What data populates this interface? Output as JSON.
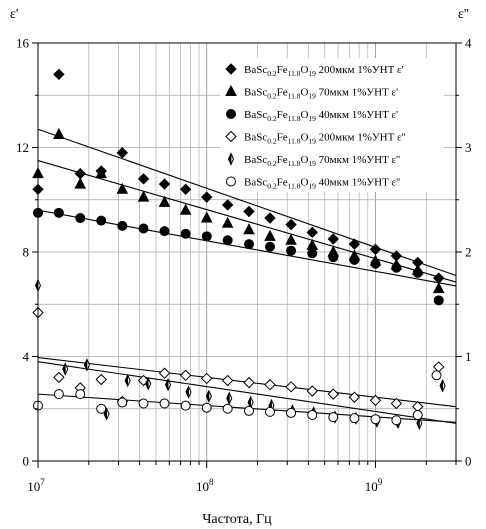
{
  "chart_data": {
    "type": "scatter",
    "title": "",
    "xlabel": "Частота, Гц",
    "ylabel_left": "ε'",
    "ylabel_right": "ε''",
    "x_scale": "log",
    "xlim": [
      10000000,
      3000000000
    ],
    "ylim_left": [
      0,
      16
    ],
    "ylim_right": [
      0,
      4
    ],
    "grid": true,
    "legend_position": "top-right",
    "x_tick_labels": [
      {
        "x": 10000000,
        "base": "10",
        "exp": "7"
      },
      {
        "x": 100000000,
        "base": "10",
        "exp": "8"
      },
      {
        "x": 1000000000,
        "base": "10",
        "exp": "9"
      }
    ],
    "y_left_tick_labels": [
      {
        "y": 0,
        "label": "0"
      },
      {
        "y": 4,
        "label": "4"
      },
      {
        "y": 8,
        "label": "8"
      },
      {
        "y": 12,
        "label": "12"
      },
      {
        "y": 16,
        "label": "16"
      }
    ],
    "y_right_tick_labels": [
      {
        "y": 0,
        "label": "0"
      },
      {
        "y": 1,
        "label": "1"
      },
      {
        "y": 2,
        "label": "2"
      },
      {
        "y": 3,
        "label": "3"
      },
      {
        "y": 4,
        "label": "4"
      }
    ],
    "series": [
      {
        "marker": "diamond-filled",
        "axis": "left",
        "legend": {
          "pre": "BaSc",
          "s1": "0.2",
          "mid": "Fe",
          "s2": "11.8",
          "o": "O",
          "s3": "19",
          "post": " 200мкм  1%УНТ ε'"
        },
        "points": [
          [
            10000000,
            10.4
          ],
          [
            13300000,
            14.8
          ],
          [
            17800000,
            11.0
          ],
          [
            23700000,
            11.1
          ],
          [
            31600000,
            11.8
          ],
          [
            42200000,
            10.8
          ],
          [
            56200000,
            10.6
          ],
          [
            75000000,
            10.4
          ],
          [
            100000000,
            10.1
          ],
          [
            133000000,
            9.8
          ],
          [
            178000000,
            9.55
          ],
          [
            237000000,
            9.3
          ],
          [
            316000000,
            9.05
          ],
          [
            422000000,
            8.75
          ],
          [
            562000000,
            8.5
          ],
          [
            750000000,
            8.3
          ],
          [
            1000000000,
            8.1
          ],
          [
            1330000000,
            7.85
          ],
          [
            1780000000,
            7.6
          ],
          [
            2370000000,
            7.0
          ]
        ],
        "trend": [
          [
            10000000,
            12.7
          ],
          [
            3000000000,
            7.1
          ]
        ]
      },
      {
        "marker": "triangle-filled",
        "axis": "left",
        "legend": {
          "pre": "BaSc",
          "s1": "0.2",
          "mid": "Fe",
          "s2": "11.8",
          "o": "O",
          "s3": "19",
          "post": " 70мкм  1%УНТ ε'"
        },
        "points": [
          [
            10000000,
            11.0
          ],
          [
            13300000,
            12.5
          ],
          [
            17800000,
            10.6
          ],
          [
            23700000,
            11.0
          ],
          [
            31600000,
            10.4
          ],
          [
            42200000,
            10.1
          ],
          [
            56200000,
            9.9
          ],
          [
            75000000,
            9.6
          ],
          [
            100000000,
            9.3
          ],
          [
            133000000,
            9.1
          ],
          [
            178000000,
            8.85
          ],
          [
            237000000,
            8.6
          ],
          [
            316000000,
            8.45
          ],
          [
            422000000,
            8.25
          ],
          [
            562000000,
            8.0
          ],
          [
            750000000,
            7.85
          ],
          [
            1000000000,
            7.65
          ],
          [
            1330000000,
            7.5
          ],
          [
            1780000000,
            7.3
          ],
          [
            2370000000,
            6.6
          ]
        ],
        "trend": [
          [
            10000000,
            11.5
          ],
          [
            3000000000,
            6.85
          ]
        ]
      },
      {
        "marker": "circle-filled",
        "axis": "left",
        "legend": {
          "pre": "BaSc",
          "s1": "0.2",
          "mid": "Fe",
          "s2": "11.8",
          "o": "O",
          "s3": "19",
          "post": " 40мкм  1%УНТ ε'"
        },
        "points": [
          [
            10000000,
            9.5
          ],
          [
            13300000,
            9.5
          ],
          [
            17800000,
            9.3
          ],
          [
            23700000,
            9.2
          ],
          [
            31600000,
            9.0
          ],
          [
            42200000,
            8.9
          ],
          [
            56200000,
            8.8
          ],
          [
            75000000,
            8.7
          ],
          [
            100000000,
            8.6
          ],
          [
            133000000,
            8.45
          ],
          [
            178000000,
            8.3
          ],
          [
            237000000,
            8.2
          ],
          [
            316000000,
            8.05
          ],
          [
            422000000,
            7.95
          ],
          [
            562000000,
            7.8
          ],
          [
            750000000,
            7.7
          ],
          [
            1000000000,
            7.55
          ],
          [
            1330000000,
            7.4
          ],
          [
            1780000000,
            7.2
          ],
          [
            2370000000,
            6.15
          ]
        ],
        "trend": [
          [
            10000000,
            9.6
          ],
          [
            3000000000,
            6.7
          ]
        ]
      },
      {
        "marker": "diamond-open",
        "axis": "right",
        "legend": {
          "pre": "BaSc",
          "s1": "0.2",
          "mid": "Fe",
          "s2": "11.8",
          "o": "O",
          "s3": "19",
          "post": " 200мкм  1%УНТ ε''"
        },
        "points": [
          [
            10000000,
            1.42
          ],
          [
            13300000,
            0.8
          ],
          [
            17800000,
            0.7
          ],
          [
            23700000,
            0.78
          ],
          [
            31600000,
            0.57
          ],
          [
            42200000,
            0.77
          ],
          [
            56200000,
            0.84
          ],
          [
            75000000,
            0.82
          ],
          [
            100000000,
            0.79
          ],
          [
            133000000,
            0.77
          ],
          [
            178000000,
            0.75
          ],
          [
            237000000,
            0.73
          ],
          [
            316000000,
            0.71
          ],
          [
            422000000,
            0.67
          ],
          [
            562000000,
            0.64
          ],
          [
            750000000,
            0.61
          ],
          [
            1000000000,
            0.58
          ],
          [
            1330000000,
            0.55
          ],
          [
            1780000000,
            0.52
          ],
          [
            2370000000,
            0.9
          ]
        ],
        "trend": [
          [
            10000000,
            0.99
          ],
          [
            3000000000,
            0.52
          ]
        ]
      },
      {
        "marker": "half-diamond",
        "axis": "right",
        "legend": {
          "pre": "BaSc",
          "s1": "0.2",
          "mid": "Fe",
          "s2": "11.8",
          "o": "O",
          "s3": "19",
          "post": " 70мкм  1%УНТ ε''"
        },
        "points": [
          [
            10000000,
            1.68
          ],
          [
            14500000,
            0.88
          ],
          [
            19500000,
            0.92
          ],
          [
            25500000,
            0.45
          ],
          [
            34000000,
            0.77
          ],
          [
            45000000,
            0.74
          ],
          [
            59000000,
            0.73
          ],
          [
            78000000,
            0.66
          ],
          [
            103000000,
            0.62
          ],
          [
            136000000,
            0.6
          ],
          [
            182000000,
            0.56
          ],
          [
            242000000,
            0.53
          ],
          [
            322000000,
            0.48
          ],
          [
            430000000,
            0.46
          ],
          [
            575000000,
            0.42
          ],
          [
            765000000,
            0.41
          ],
          [
            1020000000,
            0.38
          ],
          [
            1360000000,
            0.37
          ],
          [
            1820000000,
            0.36
          ],
          [
            2500000000,
            0.72
          ]
        ],
        "trend": [
          [
            10000000,
            0.95
          ],
          [
            3000000000,
            0.36
          ]
        ]
      },
      {
        "marker": "circle-open",
        "axis": "right",
        "legend": {
          "pre": "BaSc",
          "s1": "0.2",
          "mid": "Fe",
          "s2": "11.8",
          "o": "O",
          "s3": "19",
          "post": " 40мкм  1%УНТ ε''"
        },
        "points": [
          [
            10000000,
            0.53
          ],
          [
            13300000,
            0.64
          ],
          [
            17800000,
            0.64
          ],
          [
            23700000,
            0.5
          ],
          [
            31600000,
            0.56
          ],
          [
            42200000,
            0.55
          ],
          [
            56200000,
            0.55
          ],
          [
            75000000,
            0.53
          ],
          [
            100000000,
            0.51
          ],
          [
            133000000,
            0.5
          ],
          [
            178000000,
            0.48
          ],
          [
            237000000,
            0.47
          ],
          [
            316000000,
            0.46
          ],
          [
            422000000,
            0.44
          ],
          [
            562000000,
            0.42
          ],
          [
            750000000,
            0.41
          ],
          [
            1000000000,
            0.4
          ],
          [
            1330000000,
            0.39
          ],
          [
            1780000000,
            0.44
          ],
          [
            2300000000,
            0.82
          ]
        ],
        "trend": [
          [
            10000000,
            0.64
          ],
          [
            3000000000,
            0.37
          ]
        ]
      }
    ]
  }
}
